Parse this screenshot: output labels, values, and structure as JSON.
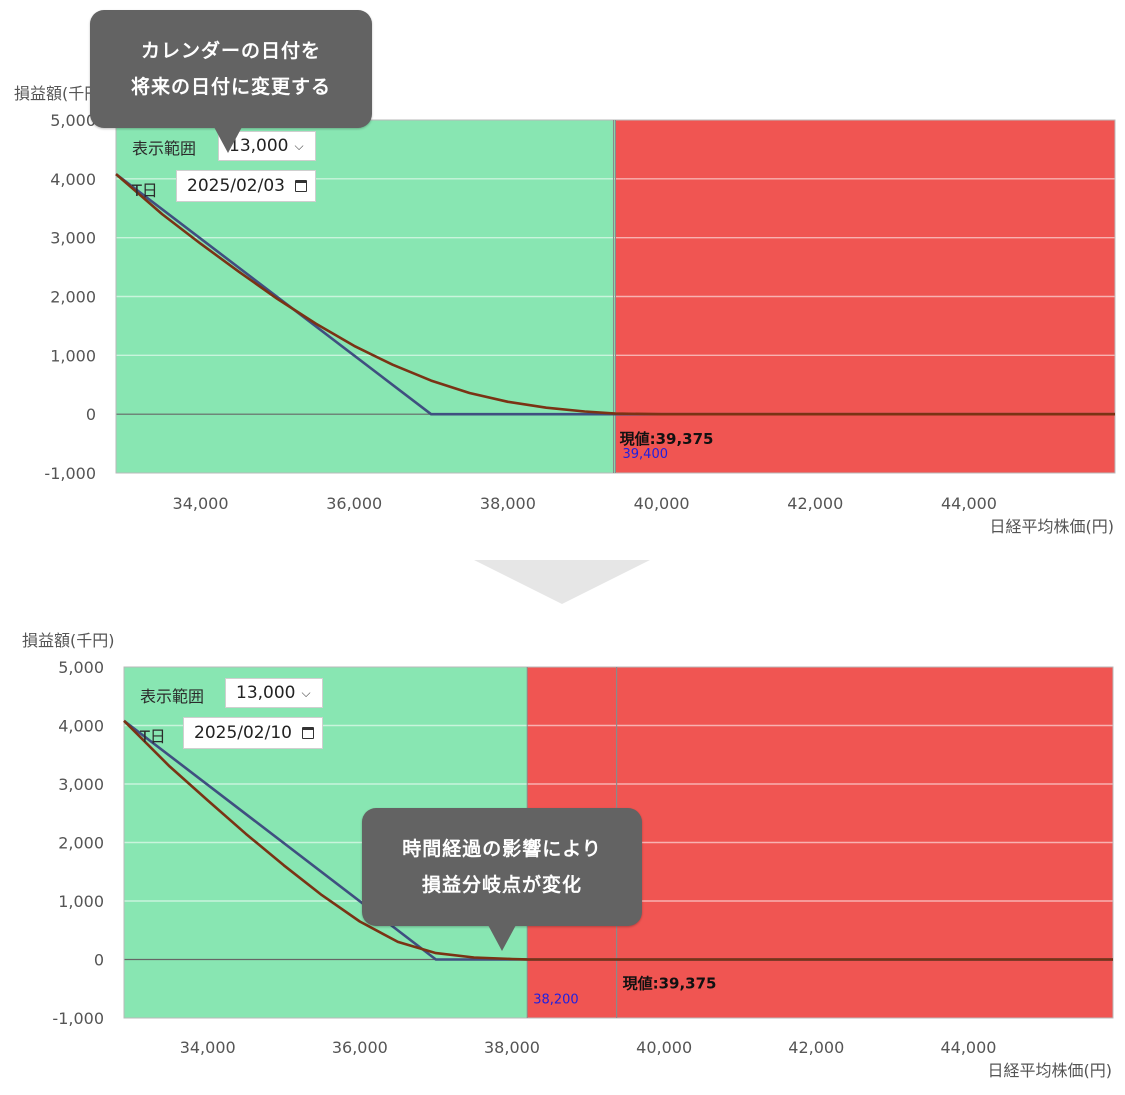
{
  "chart_data": [
    {
      "type": "line",
      "ylabel": "損益額(千円)",
      "xlabel": "日経平均株価(円)",
      "xlim": [
        32900,
        45900
      ],
      "ylim": [
        -1000,
        5000
      ],
      "y_ticks": [
        5000,
        4000,
        3000,
        2000,
        1000,
        0,
        -1000
      ],
      "y_tick_labels": [
        "5,000",
        "4,000",
        "3,000",
        "2,000",
        "1,000",
        "0",
        "-1,000"
      ],
      "x_ticks": [
        34000,
        36000,
        38000,
        40000,
        42000,
        44000
      ],
      "x_tick_labels": [
        "34,000",
        "36,000",
        "38,000",
        "40,000",
        "42,000",
        "44,000"
      ],
      "grid": true,
      "regions": [
        {
          "from": 32900,
          "to": 39400,
          "color": "#88e6b2"
        },
        {
          "from": 39400,
          "to": 45900,
          "color": "#f05552"
        }
      ],
      "breakeven_value": 39400,
      "breakeven_label": "39,400",
      "current_value": 39375,
      "current_label": "現値:39,375",
      "series": [
        {
          "color": "#3f4f80",
          "x": [
            32900,
            37000,
            45900
          ],
          "y": [
            4080,
            0,
            0
          ]
        },
        {
          "color": "#7a3314",
          "x": [
            32900,
            33500,
            34000,
            34500,
            35000,
            35500,
            36000,
            36500,
            37000,
            37500,
            38000,
            38500,
            39000,
            39400,
            40000,
            41000,
            45900
          ],
          "y": [
            4080,
            3400,
            2900,
            2420,
            1960,
            1540,
            1160,
            840,
            570,
            360,
            210,
            110,
            45,
            10,
            0,
            0,
            0
          ]
        }
      ]
    },
    {
      "type": "line",
      "ylabel": "損益額(千円)",
      "xlabel": "日経平均株価(円)",
      "xlim": [
        32900,
        45900
      ],
      "ylim": [
        -1000,
        5000
      ],
      "y_ticks": [
        5000,
        4000,
        3000,
        2000,
        1000,
        0,
        -1000
      ],
      "y_tick_labels": [
        "5,000",
        "4,000",
        "3,000",
        "2,000",
        "1,000",
        "0",
        "-1,000"
      ],
      "x_ticks": [
        34000,
        36000,
        38000,
        40000,
        42000,
        44000
      ],
      "x_tick_labels": [
        "34,000",
        "36,000",
        "38,000",
        "40,000",
        "42,000",
        "44,000"
      ],
      "grid": true,
      "regions": [
        {
          "from": 32900,
          "to": 38200,
          "color": "#88e6b2"
        },
        {
          "from": 38200,
          "to": 45900,
          "color": "#f05552"
        }
      ],
      "breakeven_value": 38200,
      "breakeven_label": "38,200",
      "current_value": 39375,
      "current_label": "現値:39,375",
      "series": [
        {
          "color": "#3f4f80",
          "x": [
            32900,
            37000,
            45900
          ],
          "y": [
            4080,
            0,
            0
          ]
        },
        {
          "color": "#7a3314",
          "x": [
            32900,
            33500,
            34000,
            34500,
            35000,
            35500,
            36000,
            36500,
            37000,
            37500,
            38000,
            38200,
            38600,
            39200,
            45900
          ],
          "y": [
            4080,
            3300,
            2720,
            2150,
            1610,
            1100,
            650,
            300,
            110,
            35,
            8,
            2,
            0,
            0,
            0
          ]
        }
      ]
    }
  ],
  "controls": [
    {
      "range_label": "表示範囲",
      "range_value": "13,000",
      "date_label": "T日",
      "date_value": "2025/02/03"
    },
    {
      "range_label": "表示範囲",
      "range_value": "13,000",
      "date_label": "T日",
      "date_value": "2025/02/10"
    }
  ],
  "callouts": {
    "top": {
      "line1": "カレンダーの日付を",
      "line2": "将来の日付に変更する"
    },
    "bottom": {
      "line1": "時間経過の影響により",
      "line2": "損益分岐点が変化"
    }
  },
  "icons": [
    "chevron-down-icon",
    "calendar-icon",
    "down-arrow-icon"
  ]
}
